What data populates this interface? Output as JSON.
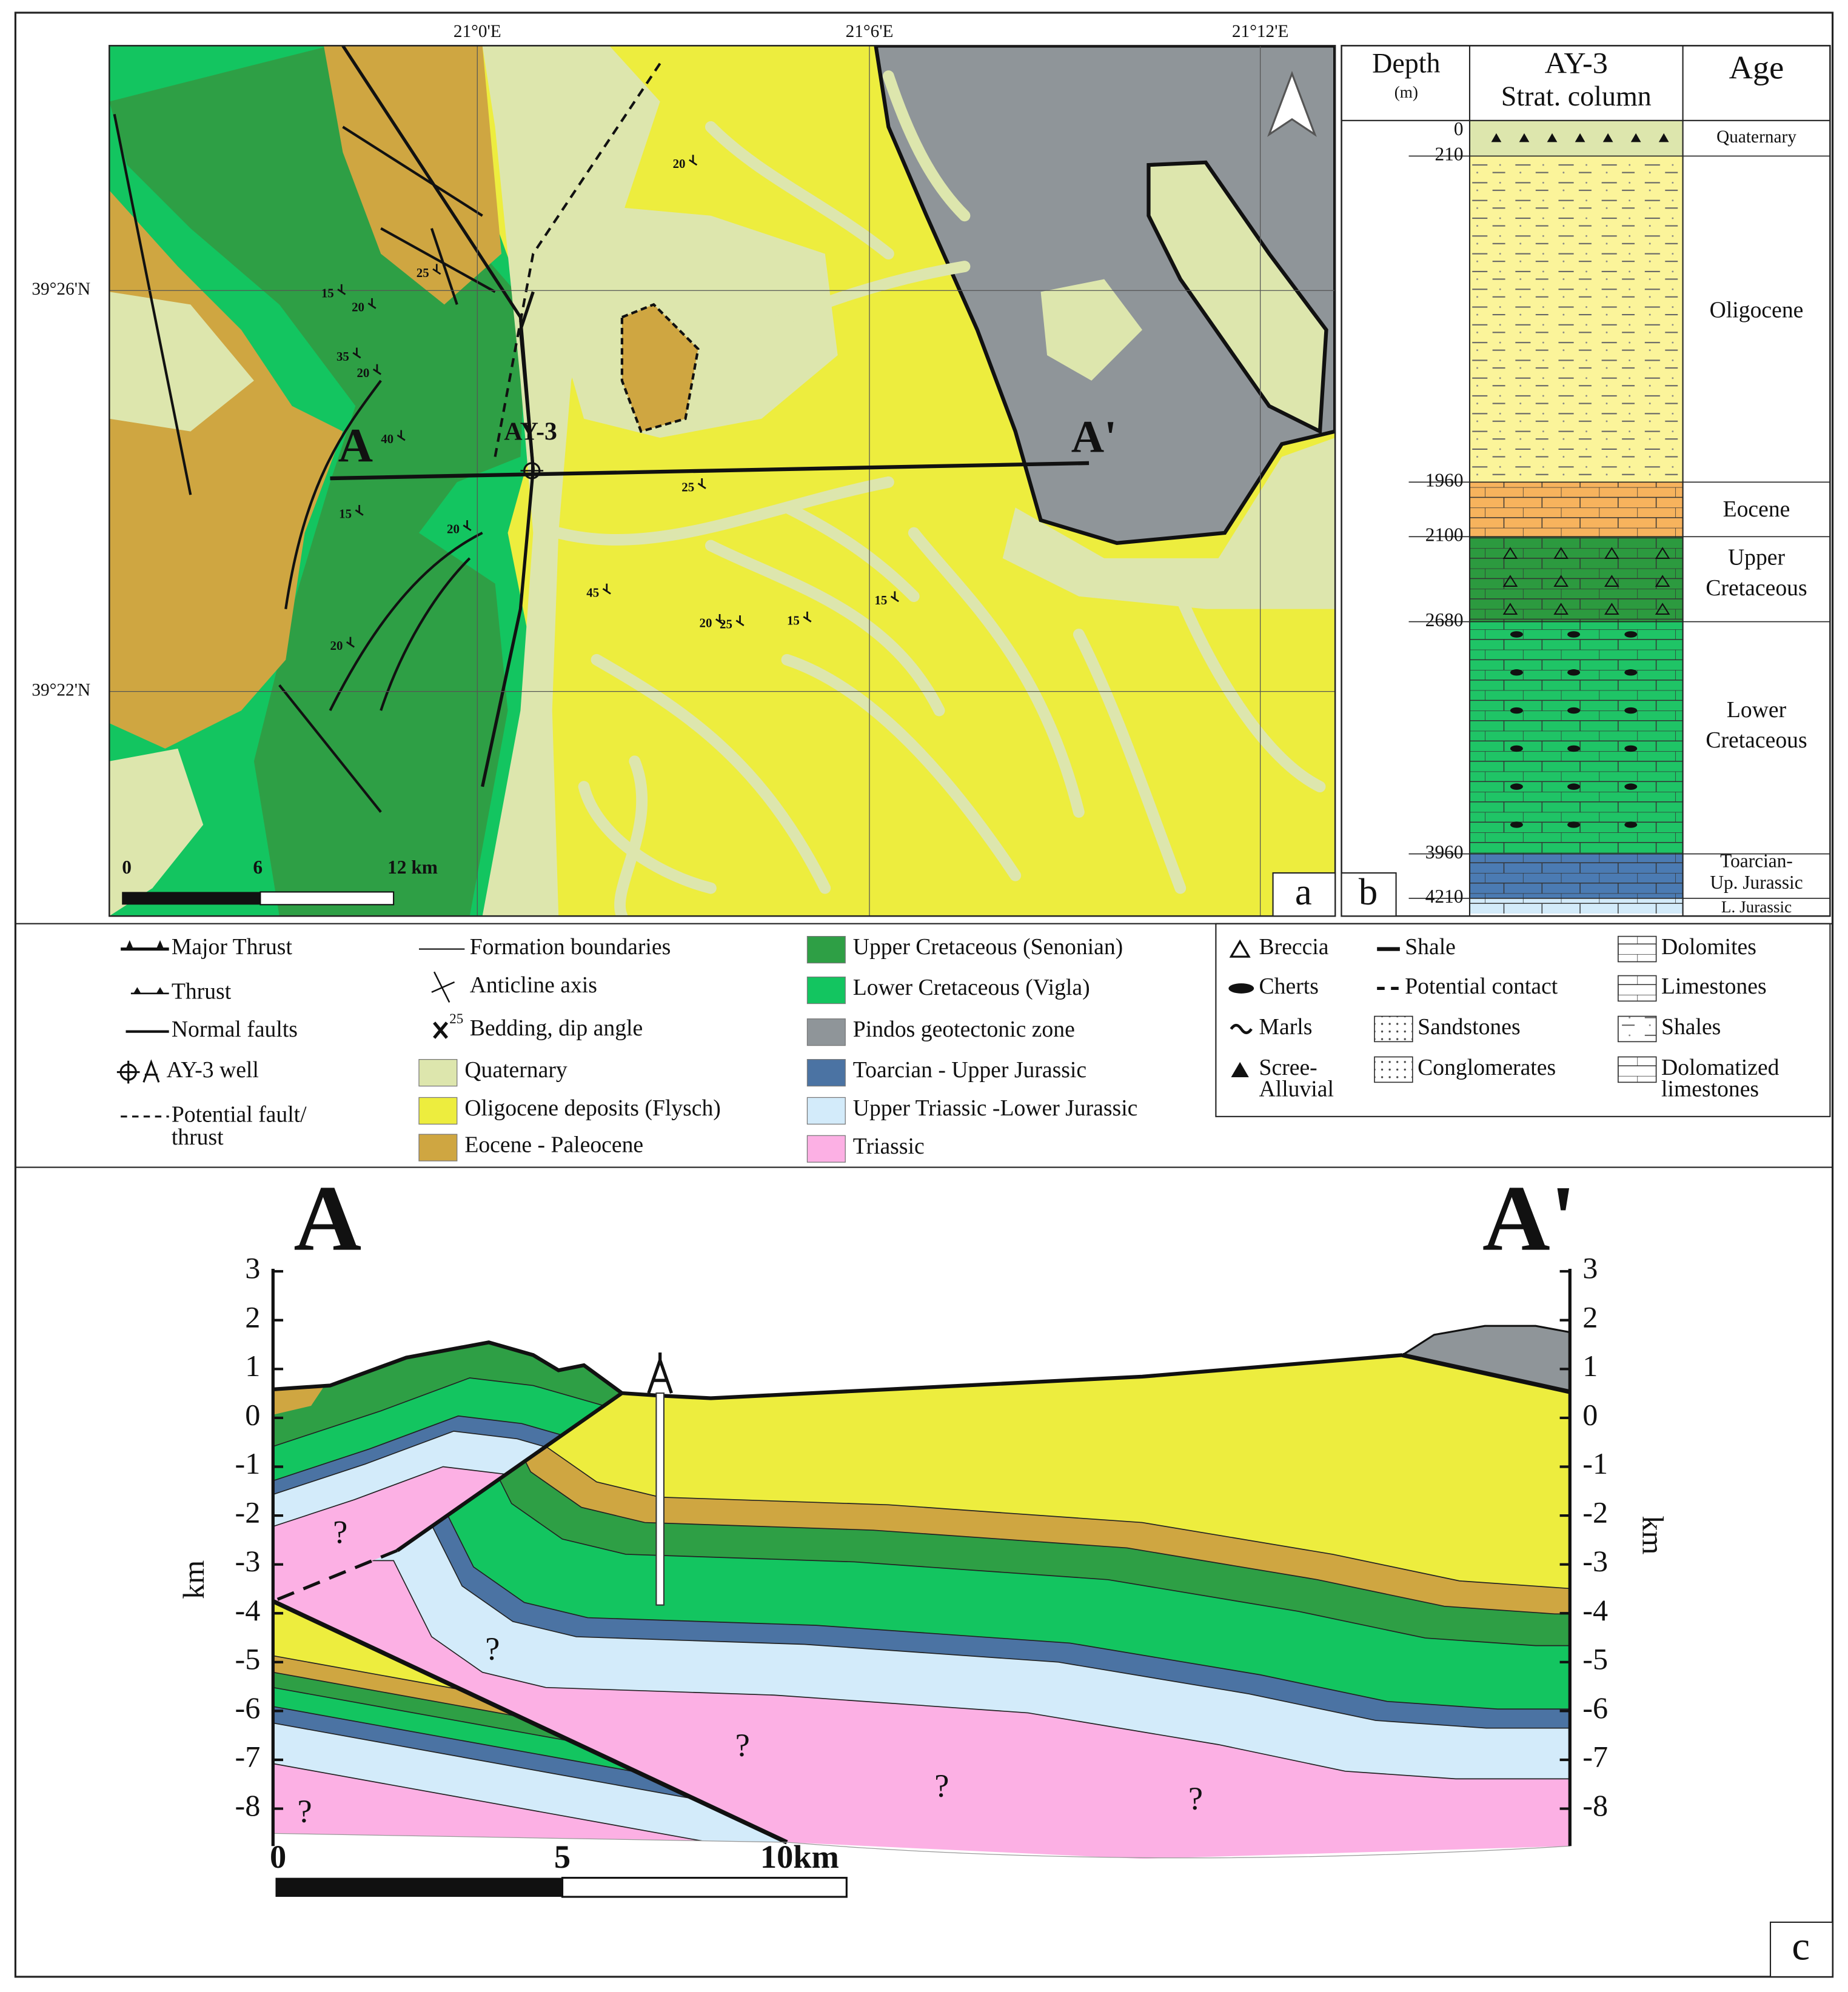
{
  "map": {
    "panel": "a",
    "lon_labels": [
      "21°0'E",
      "21°6'E",
      "21°12'E"
    ],
    "lat_labels": [
      "39°26'N",
      "39°22'N"
    ],
    "point_labels": {
      "a": "A",
      "a_prime": "A'",
      "well": "AY-3"
    },
    "dip_labels": [
      15,
      20,
      35,
      20,
      40,
      25,
      20,
      15,
      20,
      20,
      45,
      20,
      25,
      15,
      15,
      25
    ],
    "scale": [
      "0",
      "6",
      "12 km"
    ]
  },
  "column": {
    "panel": "b",
    "headers": {
      "depth": "Depth",
      "depth_unit": "(m)",
      "well": "AY-3",
      "column": "Strat. column",
      "age": "Age"
    },
    "depths": [
      0,
      210,
      1960,
      2100,
      2680,
      3960,
      4210
    ],
    "ages": [
      [
        "Quaternary"
      ],
      [
        "Oligocene"
      ],
      [
        "Eocene"
      ],
      [
        "Upper",
        "Cretaceous"
      ],
      [
        "Lower",
        "Cretaceous"
      ],
      [
        "Toarcian-",
        "Up. Jurassic"
      ],
      [
        "L. Jurassic"
      ]
    ]
  },
  "legend": {
    "symbols": [
      {
        "label": [
          "Major Thrust"
        ]
      },
      {
        "label": [
          "Thrust"
        ]
      },
      {
        "label": [
          "Normal faults"
        ]
      },
      {
        "label": [
          "AY-3 well"
        ]
      },
      {
        "label": [
          "Potential fault/",
          "thrust"
        ]
      },
      {
        "label": [
          "Formation boundaries"
        ]
      },
      {
        "label": [
          "Anticline axis"
        ]
      },
      {
        "label": [
          "Bedding, dip angle"
        ],
        "mark_label": 25
      }
    ],
    "units": [
      {
        "label": "Quaternary",
        "color": "#dde6ad"
      },
      {
        "label": "Oligocene deposits (Flysch)",
        "color": "#eded3e"
      },
      {
        "label": "Eocene - Paleocene",
        "color": "#cfa641"
      },
      {
        "label": "Upper Cretaceous (Senonian)",
        "color": "#2e9f45"
      },
      {
        "label": "Lower Cretaceous (Vigla)",
        "color": "#13c560"
      },
      {
        "label": "Pindos geotectonic zone",
        "color": "#8f9599"
      },
      {
        "label": "Toarcian - Upper Jurassic",
        "color": "#4b73a3"
      },
      {
        "label": "Upper Triassic -Lower Jurassic",
        "color": "#d3ebfa"
      },
      {
        "label": "Triassic",
        "color": "#fcb0e4"
      }
    ],
    "lithology": [
      {
        "label": [
          "Breccia"
        ]
      },
      {
        "label": [
          "Cherts"
        ]
      },
      {
        "label": [
          "Marls"
        ]
      },
      {
        "label": [
          "Scree-",
          "Alluvial"
        ]
      },
      {
        "label": [
          "Shale"
        ]
      },
      {
        "label": [
          "Potential contact"
        ]
      },
      {
        "label": [
          "Sandstones"
        ]
      },
      {
        "label": [
          "Conglomerates"
        ]
      },
      {
        "label": [
          "Dolomites"
        ]
      },
      {
        "label": [
          "Limestones"
        ]
      },
      {
        "label": [
          "Shales"
        ]
      },
      {
        "label": [
          "Dolomatized",
          "limestones"
        ]
      }
    ]
  },
  "section": {
    "panel": "c",
    "end_labels": [
      "A",
      "A'"
    ],
    "axis_label": "km",
    "yticks": [
      3,
      2,
      1,
      0,
      -1,
      -2,
      -3,
      -4,
      -5,
      -6,
      -7,
      -8
    ],
    "scale": [
      "0",
      "5",
      "10km"
    ],
    "question_marks": [
      "?",
      "?",
      "?",
      "?",
      "?",
      "?"
    ]
  }
}
